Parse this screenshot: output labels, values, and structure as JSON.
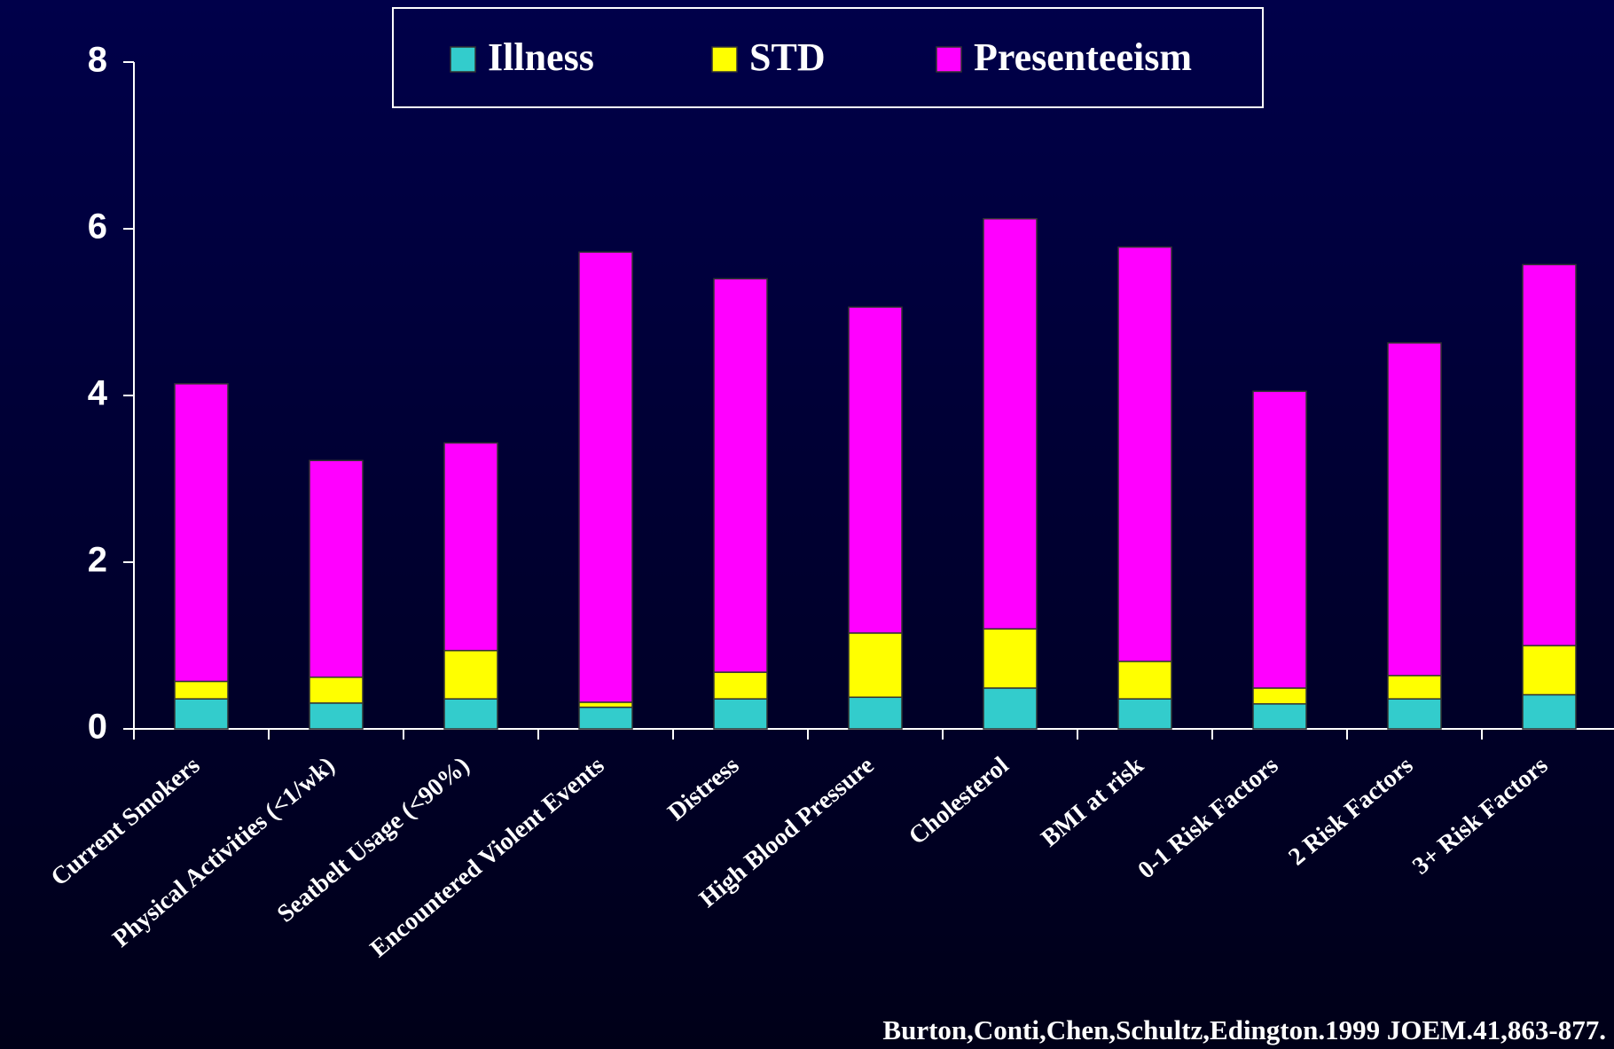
{
  "chart_data": {
    "type": "stacked_bar",
    "categories": [
      "Current Smokers",
      "Physical Activities (<1/wk)",
      "Seatbelt Usage (<90%)",
      "Encountered Violent Events",
      "Distress",
      "High Blood Pressure",
      "Cholesterol",
      "BMI at risk",
      "0-1 Risk Factors",
      "2 Risk Factors",
      "3+ Risk Factors"
    ],
    "series": [
      {
        "name": "Illness",
        "color": "#33cccc",
        "values": [
          0.36,
          0.31,
          0.36,
          0.26,
          0.36,
          0.38,
          0.49,
          0.36,
          0.3,
          0.36,
          0.41
        ]
      },
      {
        "name": "STD",
        "color": "#ffff00",
        "values": [
          0.21,
          0.31,
          0.58,
          0.06,
          0.32,
          0.77,
          0.71,
          0.45,
          0.19,
          0.28,
          0.59
        ]
      },
      {
        "name": "Presenteeism",
        "color": "#ff00ff",
        "values": [
          3.57,
          2.6,
          2.49,
          5.4,
          4.72,
          3.91,
          4.92,
          4.97,
          3.56,
          3.99,
          4.57
        ]
      }
    ],
    "ylim": [
      0,
      8
    ],
    "yticks": [
      0,
      2,
      4,
      6,
      8
    ],
    "source": "Burton,Conti,Chen,Schultz,Edington.1999 JOEM.41,863-877."
  }
}
